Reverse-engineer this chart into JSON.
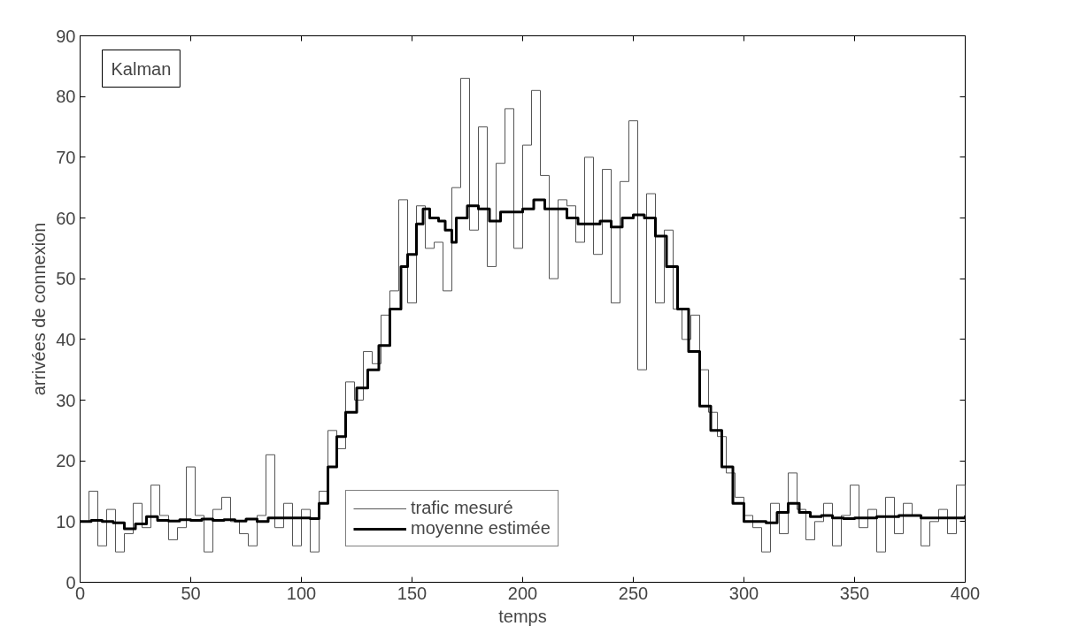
{
  "chart_data": {
    "type": "step",
    "xlabel": "temps",
    "ylabel": "arrivées de connexion",
    "annotations": [
      "Kalman"
    ],
    "xlim": [
      0,
      400
    ],
    "xticks": [
      0,
      50,
      100,
      150,
      200,
      250,
      300,
      350,
      400
    ],
    "ylim": [
      0,
      90
    ],
    "yticks": [
      0,
      10,
      20,
      30,
      40,
      50,
      60,
      70,
      80,
      90
    ],
    "grid": false,
    "legend": "bottom",
    "series": [
      {
        "name": "trafic mesuré",
        "color": "#555555",
        "x": [
          0,
          4,
          8,
          12,
          16,
          20,
          24,
          28,
          32,
          36,
          40,
          44,
          48,
          52,
          56,
          60,
          64,
          68,
          72,
          76,
          80,
          84,
          88,
          92,
          96,
          100,
          104,
          108,
          112,
          116,
          120,
          124,
          128,
          132,
          136,
          140,
          144,
          148,
          152,
          156,
          160,
          164,
          168,
          172,
          176,
          180,
          184,
          188,
          192,
          196,
          200,
          204,
          208,
          212,
          216,
          220,
          224,
          228,
          232,
          236,
          240,
          244,
          248,
          252,
          256,
          260,
          264,
          268,
          272,
          276,
          280,
          284,
          288,
          292,
          296,
          300,
          304,
          308,
          312,
          316,
          320,
          324,
          328,
          332,
          336,
          340,
          344,
          348,
          352,
          356,
          360,
          364,
          368,
          372,
          376,
          380,
          384,
          388,
          392,
          396,
          400
        ],
        "values": [
          10,
          15,
          6,
          12,
          5,
          8,
          13,
          9,
          16,
          11,
          7,
          9,
          19,
          11,
          5,
          12,
          14,
          10,
          8,
          6,
          11,
          21,
          9,
          13,
          6,
          12,
          5,
          15,
          25,
          22,
          33,
          30,
          38,
          36,
          44,
          48,
          63,
          46,
          62,
          55,
          56,
          48,
          65,
          83,
          58,
          75,
          52,
          69,
          78,
          55,
          72,
          81,
          67,
          50,
          63,
          62,
          56,
          70,
          54,
          68,
          46,
          66,
          76,
          35,
          64,
          46,
          58,
          45,
          40,
          44,
          35,
          28,
          24,
          18,
          14,
          11,
          9,
          5,
          13,
          8,
          18,
          12,
          7,
          10,
          13,
          6,
          11,
          16,
          9,
          12,
          5,
          14,
          8,
          13,
          11,
          6,
          10,
          12,
          8,
          16,
          11
        ]
      },
      {
        "name": "moyenne estimée",
        "color": "#000000",
        "x": [
          0,
          5,
          10,
          15,
          20,
          25,
          30,
          35,
          40,
          45,
          50,
          55,
          60,
          65,
          70,
          75,
          80,
          85,
          90,
          95,
          100,
          104,
          108,
          112,
          116,
          120,
          125,
          130,
          135,
          140,
          145,
          148,
          152,
          155,
          158,
          162,
          165,
          168,
          170,
          175,
          180,
          185,
          190,
          195,
          200,
          205,
          210,
          215,
          220,
          225,
          230,
          235,
          240,
          245,
          250,
          255,
          260,
          265,
          270,
          275,
          280,
          285,
          290,
          295,
          300,
          305,
          310,
          315,
          320,
          325,
          330,
          335,
          340,
          345,
          350,
          360,
          370,
          380,
          390,
          400
        ],
        "values": [
          10,
          10.2,
          10,
          9.8,
          8.8,
          9.6,
          10.8,
          10.2,
          10.1,
          10.3,
          10.2,
          10.4,
          10.2,
          10.3,
          10.1,
          10.4,
          10,
          10.6,
          10.6,
          10.6,
          10.6,
          10.5,
          13,
          19,
          24,
          28,
          32,
          35,
          39,
          45,
          52,
          54,
          59,
          61.5,
          60,
          59.5,
          58,
          56,
          60,
          62,
          61.5,
          59.5,
          61,
          61,
          61.5,
          63,
          61.5,
          61.5,
          60,
          59,
          59,
          59.5,
          58.5,
          60,
          60.5,
          60,
          57,
          52,
          45,
          38,
          29,
          25,
          19,
          13,
          10,
          10,
          9.8,
          11.5,
          13,
          11.5,
          10.8,
          11,
          10.6,
          10.5,
          10.6,
          10.8,
          11,
          10.6,
          10.6,
          11
        ]
      }
    ]
  }
}
